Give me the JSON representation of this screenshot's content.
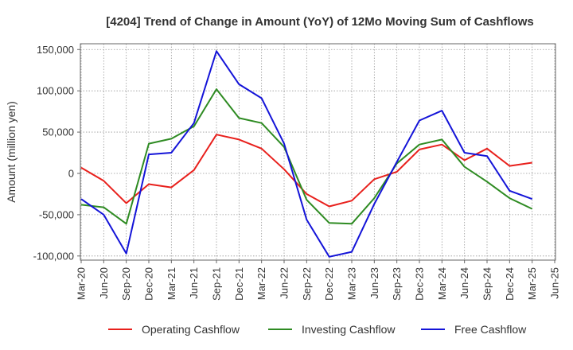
{
  "chart_data": {
    "type": "line",
    "title": "[4204]  Trend of Change in Amount (YoY) of 12Mo Moving Sum of Cashflows",
    "xlabel": "",
    "ylabel": "Amount (million yen)",
    "ylim": [
      -105000,
      157000
    ],
    "yticks": [
      150000,
      100000,
      50000,
      0,
      -50000,
      -100000
    ],
    "ytick_labels": [
      "150,000",
      "100,000",
      "50,000",
      "0",
      "-50,000",
      "-100,000"
    ],
    "categories": [
      "Mar-20",
      "Jun-20",
      "Sep-20",
      "Dec-20",
      "Mar-21",
      "Jun-21",
      "Sep-21",
      "Dec-21",
      "Mar-22",
      "Jun-22",
      "Sep-22",
      "Dec-22",
      "Mar-23",
      "Jun-23",
      "Sep-23",
      "Dec-23",
      "Mar-24",
      "Jun-24",
      "Sep-24",
      "Dec-24",
      "Mar-25",
      "Jun-25"
    ],
    "grid": true,
    "legend_position": "bottom",
    "series": [
      {
        "name": "Operating Cashflow",
        "color": "#e8201c",
        "values": [
          7000,
          -9000,
          -36000,
          -13000,
          -17000,
          4000,
          47000,
          41000,
          30000,
          5000,
          -25000,
          -40000,
          -33000,
          -7000,
          2000,
          29000,
          35000,
          16000,
          30000,
          9000,
          13000,
          null
        ]
      },
      {
        "name": "Investing Cashflow",
        "color": "#2e8b22",
        "values": [
          -38000,
          -41000,
          -61000,
          36000,
          42000,
          57000,
          102000,
          67000,
          61000,
          32000,
          -32000,
          -60000,
          -61000,
          -30000,
          12000,
          35000,
          41000,
          8000,
          -10000,
          -30000,
          -43000,
          null
        ]
      },
      {
        "name": "Free Cashflow",
        "color": "#1414d8",
        "values": [
          -31000,
          -50000,
          -97000,
          23000,
          25000,
          61000,
          148000,
          108000,
          91000,
          36000,
          -56000,
          -101000,
          -95000,
          -37000,
          14000,
          64000,
          76000,
          25000,
          21000,
          -21000,
          -31000,
          null
        ]
      }
    ]
  }
}
